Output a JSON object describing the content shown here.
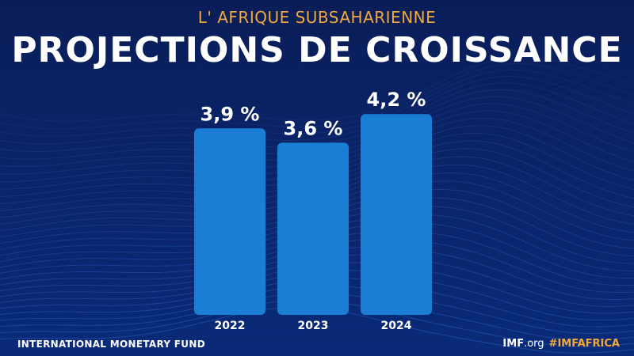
{
  "header": {
    "subtitle": "L' AFRIQUE SUBSAHARIENNE",
    "title": "PROJECTIONS DE CROISSANCE"
  },
  "chart_data": {
    "type": "bar",
    "categories": [
      "2022",
      "2023",
      "2024"
    ],
    "values": [
      3.9,
      3.6,
      4.2
    ],
    "data_labels": [
      "3,9 %",
      "3,6 %",
      "4,2 %"
    ],
    "title": "PROJECTIONS DE CROISSANCE",
    "xlabel": "",
    "ylabel": "",
    "ylim": [
      0,
      4.6
    ],
    "grid": false,
    "bar_color": "#1a7fd4",
    "label_color": "#ffffff"
  },
  "footer": {
    "left": "INTERNATIONAL MONETARY FUND",
    "imf": "IMF",
    "org": ".org",
    "hashtag": "#IMFAFRICA"
  },
  "colors": {
    "background": "#0a1f5c",
    "accent": "#f2a93b",
    "bar": "#1a7fd4"
  }
}
